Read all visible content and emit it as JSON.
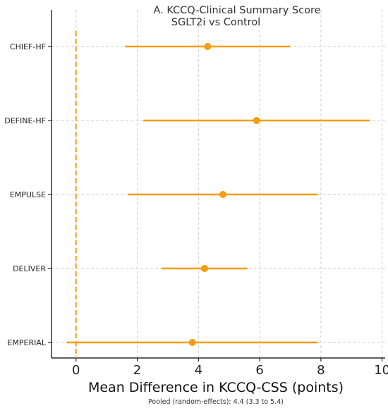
{
  "chart_data": {
    "type": "forest",
    "title_line1": "A. KCCQ-Clinical Summary Score",
    "title_line2": "SGLT2i vs Control",
    "xlabel": "Mean Difference in KCCQ-CSS (points)",
    "footnote": "Pooled (random-effects): 4.4 (3.3 to 5.4)",
    "xlim": [
      -0.8,
      10.1
    ],
    "x_ticks": [
      0,
      2,
      4,
      6,
      8,
      10
    ],
    "reference_line": 0,
    "grid": true,
    "color": "#f59e0b",
    "studies": [
      {
        "name": "CHIEF-HF",
        "mean": 4.3,
        "lower": 1.6,
        "upper": 7.0
      },
      {
        "name": "DEFINE-HF",
        "mean": 5.9,
        "lower": 2.2,
        "upper": 9.6
      },
      {
        "name": "EMPULSE",
        "mean": 4.8,
        "lower": 1.7,
        "upper": 7.9
      },
      {
        "name": "DELIVER",
        "mean": 4.2,
        "lower": 2.8,
        "upper": 5.6
      },
      {
        "name": "EMPERIAL",
        "mean": 3.8,
        "lower": -0.3,
        "upper": 7.9
      }
    ]
  }
}
